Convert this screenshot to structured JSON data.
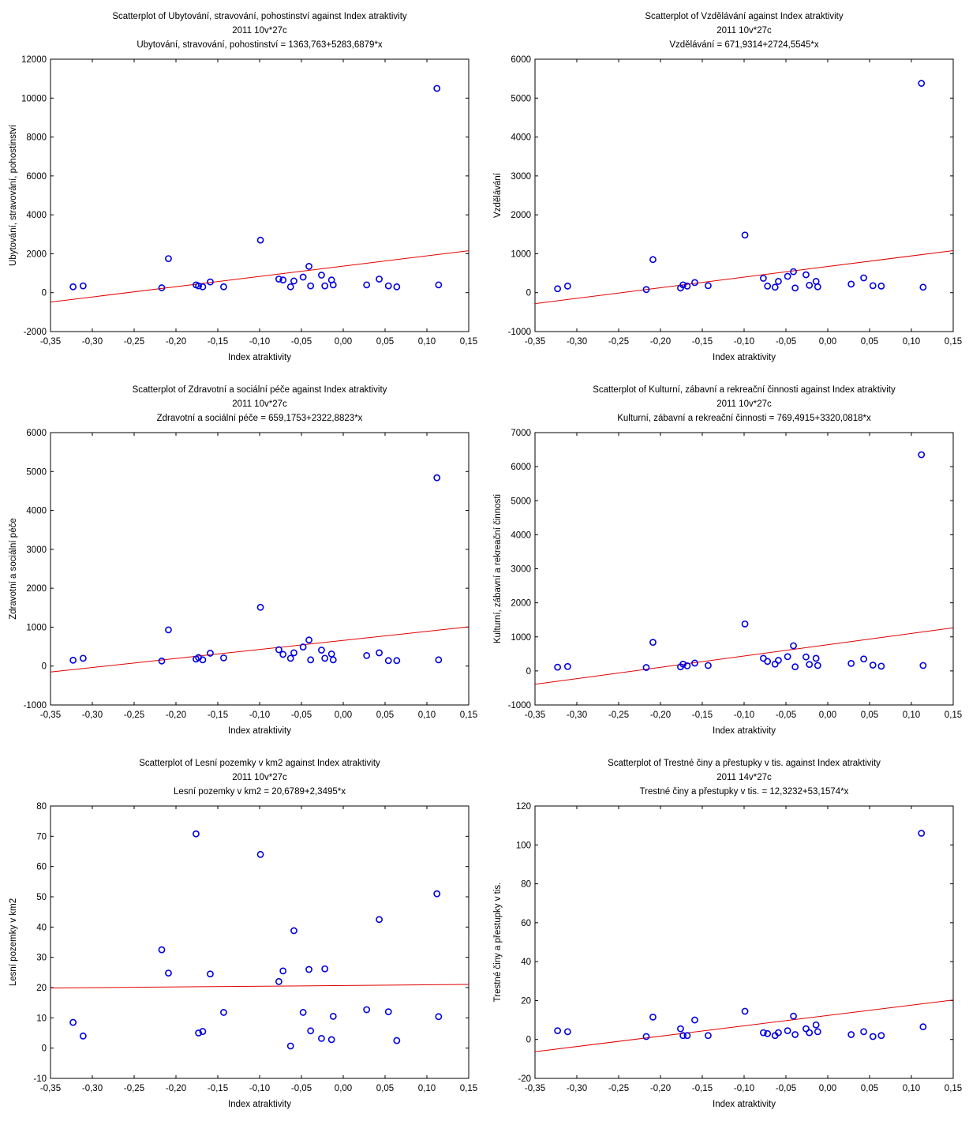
{
  "chart_data": [
    {
      "type": "scatter",
      "title": "Scatterplot of Ubytování, stravování, pohostinství against Index atraktivity",
      "subtitle": "2011 10v*27c",
      "equation": "Ubytování, stravování, pohostinství = 1363,763+5283,6879*x",
      "xlabel": "Index atraktivity",
      "ylabel": "Ubytování, stravování, pohostinství",
      "xlim": [
        -0.35,
        0.15
      ],
      "ylim": [
        -2000,
        12000
      ],
      "xticks": [
        -0.35,
        -0.3,
        -0.25,
        -0.2,
        -0.15,
        -0.1,
        -0.05,
        0.0,
        0.05,
        0.1,
        0.15
      ],
      "xtick_labels": [
        "-0,35",
        "-0,30",
        "-0,25",
        "-0,20",
        "-0,15",
        "-0,10",
        "-0,05",
        "0,00",
        "0,05",
        "0,10",
        "0,15"
      ],
      "yticks": [
        -2000,
        0,
        2000,
        4000,
        6000,
        8000,
        10000,
        12000
      ],
      "ytick_labels": [
        "-2000",
        "0",
        "2000",
        "4000",
        "6000",
        "8000",
        "10000",
        "12000"
      ],
      "fit": {
        "intercept": 1363.763,
        "slope": 5283.6879
      },
      "x": [
        -0.323,
        -0.311,
        -0.217,
        -0.209,
        -0.176,
        -0.173,
        -0.168,
        -0.159,
        -0.143,
        -0.099,
        -0.077,
        -0.072,
        -0.063,
        -0.059,
        -0.048,
        -0.041,
        -0.039,
        -0.026,
        -0.022,
        -0.014,
        -0.012,
        0.028,
        0.043,
        0.054,
        0.064,
        0.112,
        0.114
      ],
      "y": [
        300,
        350,
        250,
        1750,
        400,
        350,
        300,
        550,
        300,
        2700,
        700,
        650,
        300,
        600,
        800,
        1350,
        350,
        900,
        350,
        650,
        400,
        400,
        700,
        350,
        300,
        10500,
        400
      ]
    },
    {
      "type": "scatter",
      "title": "Scatterplot of Vzdělávání against Index atraktivity",
      "subtitle": "2011 10v*27c",
      "equation": "Vzdělávání = 671,9314+2724,5545*x",
      "xlabel": "Index atraktivity",
      "ylabel": "Vzdělávání",
      "xlim": [
        -0.35,
        0.15
      ],
      "ylim": [
        -1000,
        6000
      ],
      "xticks": [
        -0.35,
        -0.3,
        -0.25,
        -0.2,
        -0.15,
        -0.1,
        -0.05,
        0.0,
        0.05,
        0.1,
        0.15
      ],
      "xtick_labels": [
        "-0,35",
        "-0,30",
        "-0,25",
        "-0,20",
        "-0,15",
        "-0,10",
        "-0,05",
        "0,00",
        "0,05",
        "0,10",
        "0,15"
      ],
      "yticks": [
        -1000,
        0,
        1000,
        2000,
        3000,
        4000,
        5000,
        6000
      ],
      "ytick_labels": [
        "-1000",
        "0",
        "1000",
        "2000",
        "3000",
        "4000",
        "5000",
        "6000"
      ],
      "fit": {
        "intercept": 671.9314,
        "slope": 2724.5545
      },
      "x": [
        -0.323,
        -0.311,
        -0.217,
        -0.209,
        -0.176,
        -0.173,
        -0.168,
        -0.159,
        -0.143,
        -0.099,
        -0.077,
        -0.072,
        -0.063,
        -0.059,
        -0.048,
        -0.041,
        -0.039,
        -0.026,
        -0.022,
        -0.014,
        -0.012,
        0.028,
        0.043,
        0.054,
        0.064,
        0.112,
        0.114
      ],
      "y": [
        100,
        170,
        80,
        850,
        120,
        200,
        170,
        260,
        180,
        1480,
        370,
        170,
        140,
        290,
        420,
        540,
        120,
        460,
        190,
        290,
        150,
        220,
        380,
        180,
        170,
        5380,
        140
      ]
    },
    {
      "type": "scatter",
      "title": "Scatterplot of Zdravotní a sociální péče against Index atraktivity",
      "subtitle": "2011 10v*27c",
      "equation": "Zdravotní a sociální péče = 659,1753+2322,8823*x",
      "xlabel": "Index atraktivity",
      "ylabel": "Zdravotní a sociální péče",
      "xlim": [
        -0.35,
        0.15
      ],
      "ylim": [
        -1000,
        6000
      ],
      "xticks": [
        -0.35,
        -0.3,
        -0.25,
        -0.2,
        -0.15,
        -0.1,
        -0.05,
        0.0,
        0.05,
        0.1,
        0.15
      ],
      "xtick_labels": [
        "-0,35",
        "-0,30",
        "-0,25",
        "-0,20",
        "-0,15",
        "-0,10",
        "-0,05",
        "0,00",
        "0,05",
        "0,10",
        "0,15"
      ],
      "yticks": [
        -1000,
        0,
        1000,
        2000,
        3000,
        4000,
        5000,
        6000
      ],
      "ytick_labels": [
        "-1000",
        "0",
        "1000",
        "2000",
        "3000",
        "4000",
        "5000",
        "6000"
      ],
      "fit": {
        "intercept": 659.1753,
        "slope": 2322.8823
      },
      "x": [
        -0.323,
        -0.311,
        -0.217,
        -0.209,
        -0.176,
        -0.173,
        -0.168,
        -0.159,
        -0.143,
        -0.099,
        -0.077,
        -0.072,
        -0.063,
        -0.059,
        -0.048,
        -0.041,
        -0.039,
        -0.026,
        -0.022,
        -0.014,
        -0.012,
        0.028,
        0.043,
        0.054,
        0.064,
        0.112,
        0.114
      ],
      "y": [
        150,
        200,
        130,
        930,
        180,
        220,
        160,
        330,
        210,
        1510,
        420,
        300,
        200,
        340,
        490,
        670,
        160,
        410,
        200,
        310,
        160,
        270,
        340,
        140,
        140,
        4840,
        160
      ]
    },
    {
      "type": "scatter",
      "title": "Scatterplot of Kulturní, zábavní a rekreační činnosti against Index atraktivity",
      "subtitle": "2011 10v*27c",
      "equation": "Kulturní, zábavní a rekreační činnosti = 769,4915+3320,0818*x",
      "xlabel": "Index atraktivity",
      "ylabel": "Kulturní, zábavní a rekreační činnosti",
      "xlim": [
        -0.35,
        0.15
      ],
      "ylim": [
        -1000,
        7000
      ],
      "xticks": [
        -0.35,
        -0.3,
        -0.25,
        -0.2,
        -0.15,
        -0.1,
        -0.05,
        0.0,
        0.05,
        0.1,
        0.15
      ],
      "xtick_labels": [
        "-0,35",
        "-0,30",
        "-0,25",
        "-0,20",
        "-0,15",
        "-0,10",
        "-0,05",
        "0,00",
        "0,05",
        "0,10",
        "0,15"
      ],
      "yticks": [
        -1000,
        0,
        1000,
        2000,
        3000,
        4000,
        5000,
        6000,
        7000
      ],
      "ytick_labels": [
        "-1000",
        "0",
        "1000",
        "2000",
        "3000",
        "4000",
        "5000",
        "6000",
        "7000"
      ],
      "fit": {
        "intercept": 769.4915,
        "slope": 3320.0818
      },
      "x": [
        -0.323,
        -0.311,
        -0.217,
        -0.209,
        -0.176,
        -0.173,
        -0.168,
        -0.159,
        -0.143,
        -0.099,
        -0.077,
        -0.072,
        -0.063,
        -0.059,
        -0.048,
        -0.041,
        -0.039,
        -0.026,
        -0.022,
        -0.014,
        -0.012,
        0.028,
        0.043,
        0.054,
        0.064,
        0.112,
        0.114
      ],
      "y": [
        110,
        130,
        100,
        840,
        120,
        200,
        150,
        230,
        160,
        1380,
        370,
        280,
        200,
        310,
        420,
        740,
        120,
        410,
        190,
        370,
        160,
        220,
        350,
        170,
        140,
        6350,
        160
      ]
    },
    {
      "type": "scatter",
      "title": "Scatterplot of Lesní pozemky v km2 against Index atraktivity",
      "subtitle": "2011 10v*27c",
      "equation": "Lesní pozemky v km2 = 20,6789+2,3495*x",
      "xlabel": "Index atraktivity",
      "ylabel": "Lesní pozemky v km2",
      "xlim": [
        -0.35,
        0.15
      ],
      "ylim": [
        -10,
        80
      ],
      "xticks": [
        -0.35,
        -0.3,
        -0.25,
        -0.2,
        -0.15,
        -0.1,
        -0.05,
        0.0,
        0.05,
        0.1,
        0.15
      ],
      "xtick_labels": [
        "-0,35",
        "-0,30",
        "-0,25",
        "-0,20",
        "-0,15",
        "-0,10",
        "-0,05",
        "0,00",
        "0,05",
        "0,10",
        "0,15"
      ],
      "yticks": [
        -10,
        0,
        10,
        20,
        30,
        40,
        50,
        60,
        70,
        80
      ],
      "ytick_labels": [
        "-10",
        "0",
        "10",
        "20",
        "30",
        "40",
        "50",
        "60",
        "70",
        "80"
      ],
      "fit": {
        "intercept": 20.6789,
        "slope": 2.3495
      },
      "x": [
        -0.323,
        -0.311,
        -0.217,
        -0.209,
        -0.176,
        -0.173,
        -0.168,
        -0.159,
        -0.143,
        -0.099,
        -0.077,
        -0.072,
        -0.063,
        -0.059,
        -0.048,
        -0.041,
        -0.039,
        -0.026,
        -0.022,
        -0.014,
        -0.012,
        0.028,
        0.043,
        0.054,
        0.064,
        0.112,
        0.114
      ],
      "y": [
        8.5,
        4,
        32.5,
        24.8,
        70.8,
        5,
        5.5,
        24.5,
        11.8,
        64,
        22,
        25.5,
        0.7,
        38.8,
        11.8,
        26,
        5.7,
        3.2,
        26.2,
        2.8,
        10.5,
        12.7,
        42.5,
        12,
        2.5,
        51,
        10.4
      ]
    },
    {
      "type": "scatter",
      "title": "Scatterplot of Trestné činy a přestupky v tis. against Index atraktivity",
      "subtitle": "2011 14v*27c",
      "equation": "Trestné činy a přestupky v tis. = 12,3232+53,1574*x",
      "xlabel": "Index atraktivity",
      "ylabel": "Trestné činy a přestupky v tis.",
      "xlim": [
        -0.35,
        0.15
      ],
      "ylim": [
        -20,
        120
      ],
      "xticks": [
        -0.35,
        -0.3,
        -0.25,
        -0.2,
        -0.15,
        -0.1,
        -0.05,
        0.0,
        0.05,
        0.1,
        0.15
      ],
      "xtick_labels": [
        "-0,35",
        "-0,30",
        "-0,25",
        "-0,20",
        "-0,15",
        "-0,10",
        "-0,05",
        "0,00",
        "0,05",
        "0,10",
        "0,15"
      ],
      "yticks": [
        -20,
        0,
        20,
        40,
        60,
        80,
        100,
        120
      ],
      "ytick_labels": [
        "-20",
        "0",
        "20",
        "40",
        "60",
        "80",
        "100",
        "120"
      ],
      "fit": {
        "intercept": 12.3232,
        "slope": 53.1574
      },
      "x": [
        -0.323,
        -0.311,
        -0.217,
        -0.209,
        -0.176,
        -0.173,
        -0.168,
        -0.159,
        -0.143,
        -0.099,
        -0.077,
        -0.072,
        -0.063,
        -0.059,
        -0.048,
        -0.041,
        -0.039,
        -0.026,
        -0.022,
        -0.014,
        -0.012,
        0.028,
        0.043,
        0.054,
        0.064,
        0.112,
        0.114
      ],
      "y": [
        4.5,
        4,
        1.5,
        11.5,
        5.5,
        2,
        2,
        10,
        2,
        14.5,
        3.5,
        3,
        2,
        3.5,
        4.5,
        12,
        2.5,
        5.5,
        3.5,
        7.5,
        4,
        2.5,
        4,
        1.5,
        2,
        106,
        6.5
      ]
    }
  ]
}
